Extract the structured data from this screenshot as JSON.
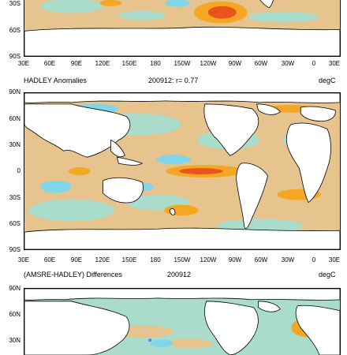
{
  "colors": {
    "warm_light": "#e7c48d",
    "warm_mid": "#f5a623",
    "warm_strong": "#e8541c",
    "cool_light": "#a9dccb",
    "cool_mid": "#7fd6e9",
    "cool_strong": "#3c8fe0",
    "land": "#ffffff",
    "coast": "#000000"
  },
  "top_panel": {
    "y_tick_labels": [
      "30S",
      "60S",
      "90S"
    ],
    "x_tick_labels": [
      "30E",
      "60E",
      "90E",
      "120E",
      "150E",
      "180",
      "150W",
      "120W",
      "90W",
      "60W",
      "30W",
      "0",
      "30E"
    ]
  },
  "middle_panel": {
    "title_left": "HADLEY Anomalies",
    "title_center": "200912: r= 0.77",
    "title_right": "degC",
    "y_tick_labels": [
      "90N",
      "60N",
      "30N",
      "0",
      "30S",
      "60S",
      "90S"
    ],
    "x_tick_labels": [
      "30E",
      "60E",
      "90E",
      "120E",
      "150E",
      "180",
      "150W",
      "120W",
      "90W",
      "60W",
      "30W",
      "0",
      "30E"
    ]
  },
  "bottom_panel": {
    "title_left": "(AMSRE-HADLEY) Differences",
    "title_center": "200912",
    "title_right": "degC",
    "y_tick_labels": [
      "90N",
      "60N",
      "30N"
    ]
  }
}
